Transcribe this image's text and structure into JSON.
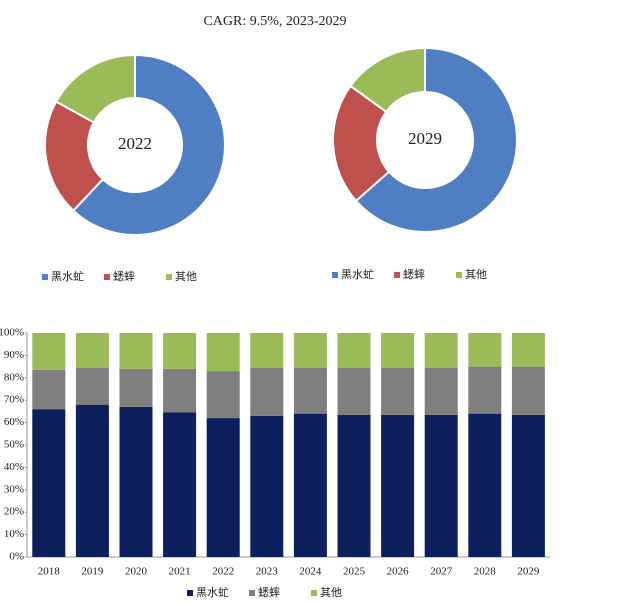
{
  "header": {
    "title": "CAGR:   9.5%, 2023-2029"
  },
  "chart_data": [
    {
      "type": "pie",
      "title": "2022",
      "categories": [
        "黑水虻",
        "蟋蟀",
        "其他"
      ],
      "values": [
        62,
        21,
        17
      ],
      "colors": [
        "#4f7fc2",
        "#c0504d",
        "#9bbb59"
      ]
    },
    {
      "type": "pie",
      "title": "2029",
      "categories": [
        "黑水虻",
        "蟋蟀",
        "其他"
      ],
      "values": [
        63.5,
        21.5,
        15
      ],
      "colors": [
        "#4f7fc2",
        "#c0504d",
        "#9bbb59"
      ]
    },
    {
      "type": "stacked_bar",
      "categories": [
        "2018",
        "2019",
        "2020",
        "2021",
        "2022",
        "2023",
        "2024",
        "2025",
        "2026",
        "2027",
        "2028",
        "2029"
      ],
      "series": [
        {
          "name": "黑水虻",
          "color": "#0d1f5c",
          "values": [
            66,
            68,
            67,
            64.5,
            62,
            63,
            64,
            63.5,
            63.5,
            63.5,
            64,
            63.5
          ]
        },
        {
          "name": "蟋蟀",
          "color": "#7f7f7f",
          "values": [
            17.5,
            16.5,
            17,
            19.5,
            21,
            21.5,
            20.5,
            21,
            21,
            21,
            21,
            21.5
          ]
        },
        {
          "name": "其他",
          "color": "#9bbb59",
          "values": [
            16.5,
            15.5,
            16,
            16,
            17,
            15.5,
            15.5,
            15.5,
            15.5,
            15.5,
            15,
            15
          ]
        }
      ],
      "ylim": [
        0,
        100
      ],
      "yticks": [
        {
          "value": 0,
          "label": "0%"
        },
        {
          "value": 10,
          "label": "10%"
        },
        {
          "value": 20,
          "label": "20%"
        },
        {
          "value": 30,
          "label": "30%"
        },
        {
          "value": 40,
          "label": "40%"
        },
        {
          "value": 50,
          "label": "50%"
        },
        {
          "value": 60,
          "label": "60%"
        },
        {
          "value": 70,
          "label": "70%"
        },
        {
          "value": 80,
          "label": "80%"
        },
        {
          "value": 90,
          "label": "90%"
        },
        {
          "value": 100,
          "label": "100%"
        }
      ]
    }
  ]
}
